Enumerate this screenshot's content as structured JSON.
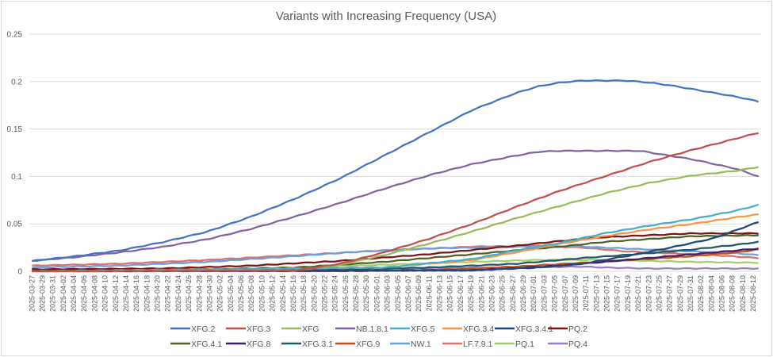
{
  "chart_data": {
    "type": "line",
    "title": "Variants with Increasing Frequency (USA)",
    "xlabel": "",
    "ylabel": "",
    "ylim": [
      0,
      0.25
    ],
    "yticks": [
      "0",
      "0.05",
      "0.1",
      "0.15",
      "0.2",
      "0.25"
    ],
    "ytick_values": [
      0,
      0.05,
      0.1,
      0.15,
      0.2,
      0.25
    ],
    "grid": true,
    "legend_position": "bottom",
    "x_start": "2025-03-27",
    "x_end": "2025-08-13",
    "x_tick_labels": [
      "2025-03-27",
      "2025-03-29",
      "2025-03-31",
      "2025-04-02",
      "2025-04-04",
      "2025-04-06",
      "2025-04-08",
      "2025-04-10",
      "2025-04-12",
      "2025-04-14",
      "2025-04-16",
      "2025-04-18",
      "2025-04-20",
      "2025-04-22",
      "2025-04-24",
      "2025-04-26",
      "2025-04-28",
      "2025-04-30",
      "2025-05-02",
      "2025-05-04",
      "2025-05-06",
      "2025-05-08",
      "2025-05-10",
      "2025-05-12",
      "2025-05-14",
      "2025-05-16",
      "2025-05-18",
      "2025-05-20",
      "2025-05-22",
      "2025-05-24",
      "2025-05-26",
      "2025-05-28",
      "2025-05-30",
      "2025-06-01",
      "2025-06-03",
      "2025-06-05",
      "2025-06-07",
      "2025-06-09",
      "2025-06-11",
      "2025-06-13",
      "2025-06-15",
      "2025-06-17",
      "2025-06-19",
      "2025-06-21",
      "2025-06-23",
      "2025-06-25",
      "2025-06-27",
      "2025-06-29",
      "2025-07-01",
      "2025-07-03",
      "2025-07-05",
      "2025-07-07",
      "2025-07-09",
      "2025-07-11",
      "2025-07-13",
      "2025-07-15",
      "2025-07-17",
      "2025-07-19",
      "2025-07-21",
      "2025-07-23",
      "2025-07-25",
      "2025-07-27",
      "2025-07-29",
      "2025-07-31",
      "2025-08-02",
      "2025-08-04",
      "2025-08-06",
      "2025-08-08",
      "2025-08-10",
      "2025-08-12"
    ],
    "x_day_index_note": "series keypoints are [day offset from 2025-03-27, frequency]",
    "series": [
      {
        "name": "XFG.2",
        "color": "#4472c4",
        "points": [
          [
            0,
            0.011
          ],
          [
            10,
            0.016
          ],
          [
            20,
            0.022
          ],
          [
            30,
            0.031
          ],
          [
            40,
            0.042
          ],
          [
            50,
            0.058
          ],
          [
            60,
            0.077
          ],
          [
            70,
            0.098
          ],
          [
            80,
            0.122
          ],
          [
            90,
            0.146
          ],
          [
            100,
            0.17
          ],
          [
            110,
            0.188
          ],
          [
            115,
            0.195
          ],
          [
            120,
            0.199
          ],
          [
            125,
            0.201
          ],
          [
            135,
            0.201
          ],
          [
            140,
            0.199
          ],
          [
            145,
            0.196
          ],
          [
            150,
            0.192
          ],
          [
            155,
            0.188
          ],
          [
            160,
            0.184
          ],
          [
            165,
            0.179
          ]
        ]
      },
      {
        "name": "XFG.3",
        "color": "#c0504d",
        "points": [
          [
            0,
            0.0
          ],
          [
            60,
            0.001
          ],
          [
            70,
            0.008
          ],
          [
            80,
            0.02
          ],
          [
            90,
            0.034
          ],
          [
            100,
            0.05
          ],
          [
            110,
            0.068
          ],
          [
            120,
            0.085
          ],
          [
            130,
            0.1
          ],
          [
            140,
            0.115
          ],
          [
            150,
            0.128
          ],
          [
            160,
            0.14
          ],
          [
            165,
            0.146
          ]
        ]
      },
      {
        "name": "XFG",
        "color": "#9bbb59",
        "points": [
          [
            0,
            0.0
          ],
          [
            60,
            0.001
          ],
          [
            70,
            0.007
          ],
          [
            80,
            0.017
          ],
          [
            90,
            0.029
          ],
          [
            100,
            0.042
          ],
          [
            110,
            0.056
          ],
          [
            120,
            0.069
          ],
          [
            130,
            0.082
          ],
          [
            140,
            0.093
          ],
          [
            150,
            0.101
          ],
          [
            160,
            0.106
          ],
          [
            165,
            0.11
          ]
        ]
      },
      {
        "name": "NB.1.8.1",
        "color": "#8064a2",
        "points": [
          [
            0,
            0.011
          ],
          [
            10,
            0.015
          ],
          [
            20,
            0.02
          ],
          [
            30,
            0.026
          ],
          [
            40,
            0.034
          ],
          [
            50,
            0.045
          ],
          [
            60,
            0.058
          ],
          [
            70,
            0.072
          ],
          [
            80,
            0.087
          ],
          [
            90,
            0.101
          ],
          [
            100,
            0.113
          ],
          [
            110,
            0.122
          ],
          [
            115,
            0.126
          ],
          [
            120,
            0.127
          ],
          [
            130,
            0.127
          ],
          [
            138,
            0.127
          ],
          [
            142,
            0.124
          ],
          [
            150,
            0.118
          ],
          [
            160,
            0.108
          ],
          [
            165,
            0.1
          ]
        ]
      },
      {
        "name": "XFG.5",
        "color": "#4bacc6",
        "points": [
          [
            0,
            0.0
          ],
          [
            80,
            0.004
          ],
          [
            100,
            0.013
          ],
          [
            110,
            0.022
          ],
          [
            120,
            0.03
          ],
          [
            130,
            0.04
          ],
          [
            140,
            0.048
          ],
          [
            150,
            0.055
          ],
          [
            160,
            0.064
          ],
          [
            165,
            0.07
          ]
        ]
      },
      {
        "name": "XFG.3.4",
        "color": "#f79646",
        "points": [
          [
            0,
            0.0
          ],
          [
            80,
            0.004
          ],
          [
            100,
            0.012
          ],
          [
            110,
            0.02
          ],
          [
            120,
            0.029
          ],
          [
            130,
            0.037
          ],
          [
            140,
            0.044
          ],
          [
            150,
            0.05
          ],
          [
            160,
            0.057
          ],
          [
            165,
            0.06
          ]
        ]
      },
      {
        "name": "XFG.3.4.1",
        "color": "#1f497d",
        "points": [
          [
            0,
            0.0
          ],
          [
            100,
            0.001
          ],
          [
            115,
            0.004
          ],
          [
            125,
            0.008
          ],
          [
            135,
            0.016
          ],
          [
            145,
            0.025
          ],
          [
            155,
            0.035
          ],
          [
            165,
            0.052
          ]
        ]
      },
      {
        "name": "PQ.2",
        "color": "#7f1416",
        "points": [
          [
            0,
            0.002
          ],
          [
            30,
            0.003
          ],
          [
            50,
            0.006
          ],
          [
            70,
            0.011
          ],
          [
            90,
            0.018
          ],
          [
            110,
            0.027
          ],
          [
            120,
            0.032
          ],
          [
            130,
            0.036
          ],
          [
            140,
            0.038
          ],
          [
            150,
            0.04
          ],
          [
            165,
            0.04
          ]
        ]
      },
      {
        "name": "XFG.4.1",
        "color": "#4f6228",
        "points": [
          [
            0,
            0.001
          ],
          [
            40,
            0.002
          ],
          [
            60,
            0.004
          ],
          [
            80,
            0.01
          ],
          [
            100,
            0.018
          ],
          [
            120,
            0.026
          ],
          [
            130,
            0.031
          ],
          [
            140,
            0.034
          ],
          [
            150,
            0.037
          ],
          [
            165,
            0.038
          ]
        ]
      },
      {
        "name": "XFG.8",
        "color": "#3f1f6b",
        "points": [
          [
            0,
            0.0
          ],
          [
            100,
            0.001
          ],
          [
            120,
            0.006
          ],
          [
            135,
            0.012
          ],
          [
            145,
            0.016
          ],
          [
            155,
            0.02
          ],
          [
            165,
            0.024
          ]
        ]
      },
      {
        "name": "XFG.3.1",
        "color": "#215968",
        "points": [
          [
            0,
            0.0
          ],
          [
            60,
            0.001
          ],
          [
            90,
            0.004
          ],
          [
            110,
            0.008
          ],
          [
            125,
            0.014
          ],
          [
            140,
            0.019
          ],
          [
            150,
            0.023
          ],
          [
            160,
            0.028
          ],
          [
            165,
            0.031
          ]
        ]
      },
      {
        "name": "XFG.9",
        "color": "#c5501a",
        "points": [
          [
            0,
            0.0
          ],
          [
            70,
            0.0
          ],
          [
            95,
            0.002
          ],
          [
            110,
            0.005
          ],
          [
            125,
            0.009
          ],
          [
            140,
            0.013
          ],
          [
            150,
            0.016
          ],
          [
            160,
            0.02
          ],
          [
            165,
            0.023
          ]
        ]
      },
      {
        "name": "NW.1",
        "color": "#6f9fd8",
        "points": [
          [
            0,
            0.004
          ],
          [
            20,
            0.006
          ],
          [
            40,
            0.01
          ],
          [
            60,
            0.016
          ],
          [
            75,
            0.021
          ],
          [
            90,
            0.024
          ],
          [
            110,
            0.026
          ],
          [
            125,
            0.026
          ],
          [
            140,
            0.023
          ],
          [
            150,
            0.021
          ],
          [
            160,
            0.019
          ],
          [
            165,
            0.017
          ]
        ]
      },
      {
        "name": "LF.7.9.1",
        "color": "#d9726f",
        "points": [
          [
            0,
            0.006
          ],
          [
            20,
            0.008
          ],
          [
            40,
            0.012
          ],
          [
            60,
            0.017
          ],
          [
            80,
            0.022
          ],
          [
            100,
            0.026
          ],
          [
            115,
            0.027
          ],
          [
            125,
            0.025
          ],
          [
            135,
            0.021
          ],
          [
            145,
            0.019
          ],
          [
            155,
            0.017
          ],
          [
            165,
            0.014
          ]
        ]
      },
      {
        "name": "PQ.1",
        "color": "#a6ce6e",
        "points": [
          [
            0,
            0.001
          ],
          [
            40,
            0.002
          ],
          [
            60,
            0.004
          ],
          [
            80,
            0.007
          ],
          [
            100,
            0.01
          ],
          [
            115,
            0.012
          ],
          [
            130,
            0.012
          ],
          [
            140,
            0.011
          ],
          [
            150,
            0.01
          ],
          [
            165,
            0.009
          ]
        ]
      },
      {
        "name": "PQ.4",
        "color": "#9b7fc4",
        "points": [
          [
            0,
            0.002
          ],
          [
            40,
            0.002
          ],
          [
            80,
            0.003
          ],
          [
            110,
            0.004
          ],
          [
            125,
            0.005
          ],
          [
            130,
            0.004
          ],
          [
            140,
            0.003
          ],
          [
            165,
            0.003
          ]
        ]
      }
    ]
  }
}
